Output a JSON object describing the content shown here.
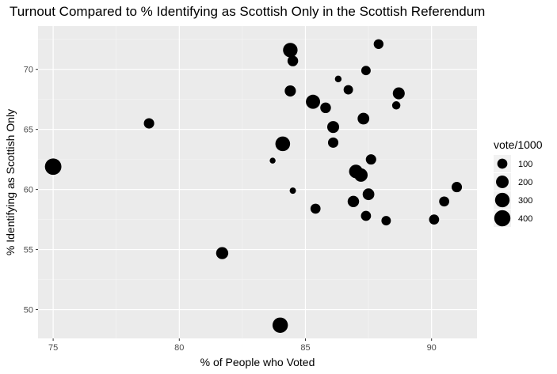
{
  "chart_data": {
    "type": "scatter",
    "title": "Turnout Compared to % Identifying as Scottish Only in the Scottish Referendum",
    "xlabel": "% of People who Voted",
    "ylabel": "% Identifying as Scottish Only",
    "xlim": [
      74.4,
      91.8
    ],
    "ylim": [
      47.6,
      73.6
    ],
    "x_ticks": [
      75,
      80,
      85,
      90
    ],
    "y_ticks": [
      50,
      55,
      60,
      65,
      70
    ],
    "grid": true,
    "size_legend": {
      "title": "vote/1000",
      "placement": "right",
      "values": [
        100,
        200,
        300,
        400
      ]
    },
    "points": [
      {
        "x": 75.0,
        "y": 61.9,
        "size": 420
      },
      {
        "x": 78.8,
        "y": 65.5,
        "size": 110
      },
      {
        "x": 81.7,
        "y": 54.7,
        "size": 180
      },
      {
        "x": 83.7,
        "y": 62.4,
        "size": 10
      },
      {
        "x": 84.0,
        "y": 48.7,
        "size": 350
      },
      {
        "x": 84.1,
        "y": 63.8,
        "size": 310
      },
      {
        "x": 84.4,
        "y": 71.6,
        "size": 300
      },
      {
        "x": 84.4,
        "y": 68.2,
        "size": 140
      },
      {
        "x": 84.5,
        "y": 70.7,
        "size": 120
      },
      {
        "x": 84.5,
        "y": 59.9,
        "size": 15
      },
      {
        "x": 85.3,
        "y": 67.3,
        "size": 280
      },
      {
        "x": 85.4,
        "y": 58.4,
        "size": 100
      },
      {
        "x": 85.8,
        "y": 66.8,
        "size": 120
      },
      {
        "x": 86.1,
        "y": 65.2,
        "size": 170
      },
      {
        "x": 86.1,
        "y": 63.9,
        "size": 110
      },
      {
        "x": 86.3,
        "y": 69.2,
        "size": 20
      },
      {
        "x": 86.7,
        "y": 68.3,
        "size": 80
      },
      {
        "x": 86.9,
        "y": 59.0,
        "size": 150
      },
      {
        "x": 87.0,
        "y": 61.5,
        "size": 250
      },
      {
        "x": 87.2,
        "y": 61.2,
        "size": 240
      },
      {
        "x": 87.3,
        "y": 65.9,
        "size": 160
      },
      {
        "x": 87.4,
        "y": 69.9,
        "size": 80
      },
      {
        "x": 87.4,
        "y": 57.8,
        "size": 100
      },
      {
        "x": 87.5,
        "y": 59.6,
        "size": 160
      },
      {
        "x": 87.6,
        "y": 62.5,
        "size": 110
      },
      {
        "x": 87.9,
        "y": 72.1,
        "size": 90
      },
      {
        "x": 88.2,
        "y": 57.4,
        "size": 80
      },
      {
        "x": 88.6,
        "y": 67.0,
        "size": 50
      },
      {
        "x": 88.7,
        "y": 68.0,
        "size": 170
      },
      {
        "x": 90.1,
        "y": 57.5,
        "size": 100
      },
      {
        "x": 90.5,
        "y": 59.0,
        "size": 100
      },
      {
        "x": 91.0,
        "y": 60.2,
        "size": 110
      }
    ]
  }
}
